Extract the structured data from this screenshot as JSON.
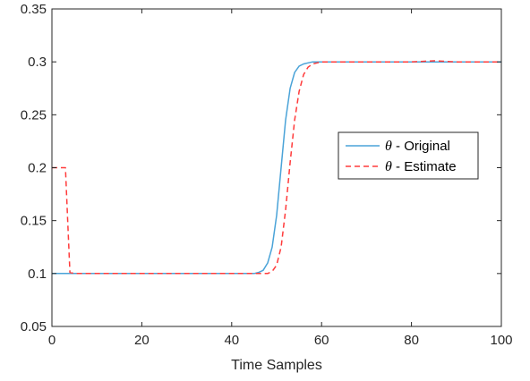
{
  "chart_data": {
    "type": "line",
    "title": "",
    "xlabel": "Time Samples",
    "ylabel": "",
    "xlim": [
      0,
      100
    ],
    "ylim": [
      0.05,
      0.35
    ],
    "xticks": [
      0,
      20,
      40,
      60,
      80,
      100
    ],
    "xtick_labels": [
      "0",
      "20",
      "40",
      "60",
      "80",
      "100"
    ],
    "yticks": [
      0.05,
      0.1,
      0.15,
      0.2,
      0.25,
      0.3,
      0.35
    ],
    "ytick_labels": [
      "0.05",
      "0.1",
      "0.15",
      "0.2",
      "0.25",
      "0.3",
      "0.35"
    ],
    "grid": false,
    "legend_position": "right",
    "series": [
      {
        "name": "θ - Original",
        "legend_symbol": "θ",
        "legend_suffix": " - Original",
        "color": "#4aa3d8",
        "style": "solid",
        "x": [
          0,
          5,
          10,
          15,
          20,
          25,
          30,
          35,
          40,
          45,
          46,
          47,
          48,
          49,
          50,
          51,
          52,
          53,
          54,
          55,
          56,
          57,
          58,
          60,
          65,
          70,
          75,
          80,
          85,
          90,
          95,
          100
        ],
        "y": [
          0.1,
          0.1,
          0.1,
          0.1,
          0.1,
          0.1,
          0.1,
          0.1,
          0.1,
          0.1,
          0.101,
          0.103,
          0.11,
          0.125,
          0.155,
          0.2,
          0.245,
          0.275,
          0.29,
          0.296,
          0.298,
          0.299,
          0.3,
          0.3,
          0.3,
          0.3,
          0.3,
          0.3,
          0.3,
          0.3,
          0.3,
          0.3
        ]
      },
      {
        "name": "θ - Estimate",
        "legend_symbol": "θ",
        "legend_suffix": " - Estimate",
        "color": "#ff3b3b",
        "style": "dashed",
        "x": [
          0,
          1,
          2,
          3,
          3.5,
          4,
          5,
          10,
          15,
          20,
          25,
          30,
          35,
          40,
          45,
          48,
          49,
          50,
          51,
          52,
          53,
          54,
          55,
          56,
          57,
          58,
          59,
          60,
          65,
          70,
          75,
          80,
          85,
          90,
          95,
          100
        ],
        "y": [
          0.2,
          0.2,
          0.2,
          0.2,
          0.15,
          0.101,
          0.1,
          0.1,
          0.1,
          0.1,
          0.1,
          0.1,
          0.1,
          0.1,
          0.1,
          0.1,
          0.102,
          0.108,
          0.125,
          0.16,
          0.205,
          0.245,
          0.272,
          0.288,
          0.295,
          0.298,
          0.299,
          0.3,
          0.3,
          0.3,
          0.3,
          0.3,
          0.301,
          0.3,
          0.3,
          0.3
        ]
      }
    ]
  }
}
